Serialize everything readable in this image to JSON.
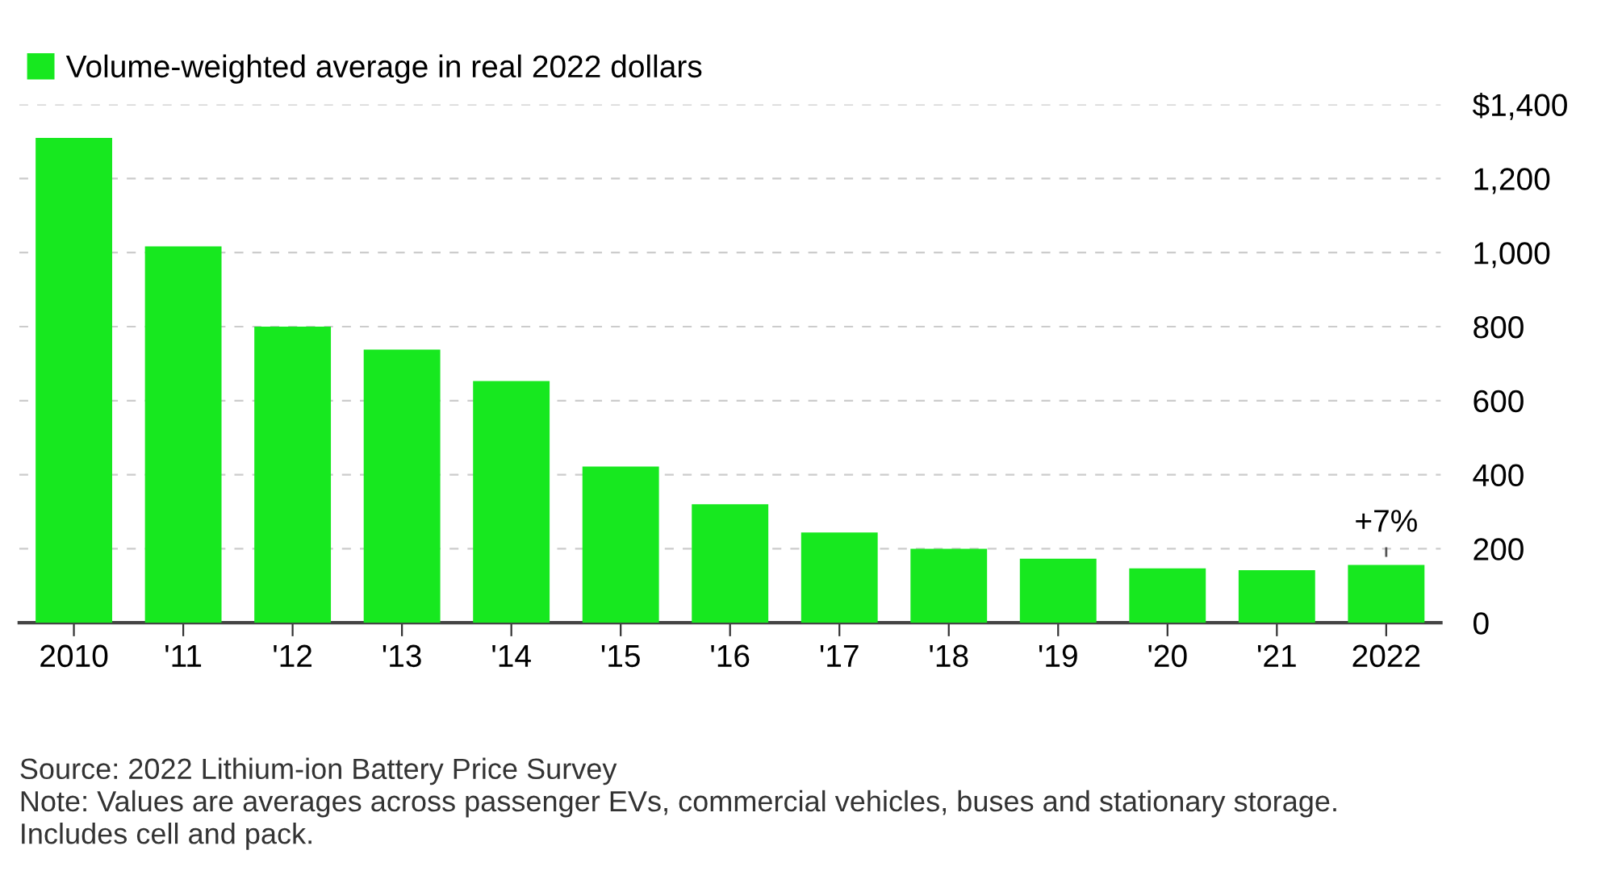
{
  "chart_data": {
    "type": "bar",
    "categories": [
      "2010",
      "'11",
      "'12",
      "'13",
      "'14",
      "'15",
      "'16",
      "'17",
      "'18",
      "'19",
      "'20",
      "'21",
      "2022"
    ],
    "series": [
      {
        "name": "Volume-weighted average in real 2022 dollars",
        "color": "#17e81f",
        "values": [
          1310,
          1017,
          800,
          738,
          653,
          422,
          320,
          244,
          200,
          173,
          147,
          142,
          156
        ]
      }
    ],
    "ylim": [
      0,
      1400
    ],
    "yticks": [
      0,
      200,
      400,
      600,
      800,
      {
        "value": 1000,
        "label": "1,000"
      },
      {
        "value": 1200,
        "label": "1,200"
      },
      {
        "value": 1400,
        "label": "$1,400"
      }
    ],
    "grid": "y",
    "legend": "top left",
    "annotations": [
      {
        "text": "+7%",
        "x": "2022",
        "y": 156
      },
      "Source: 2022 Lithium-ion Battery Price Survey",
      "Note: Values are averages across passenger EVs, commercial vehicles, buses and stationary storage.\nIncludes cell and pack."
    ]
  }
}
